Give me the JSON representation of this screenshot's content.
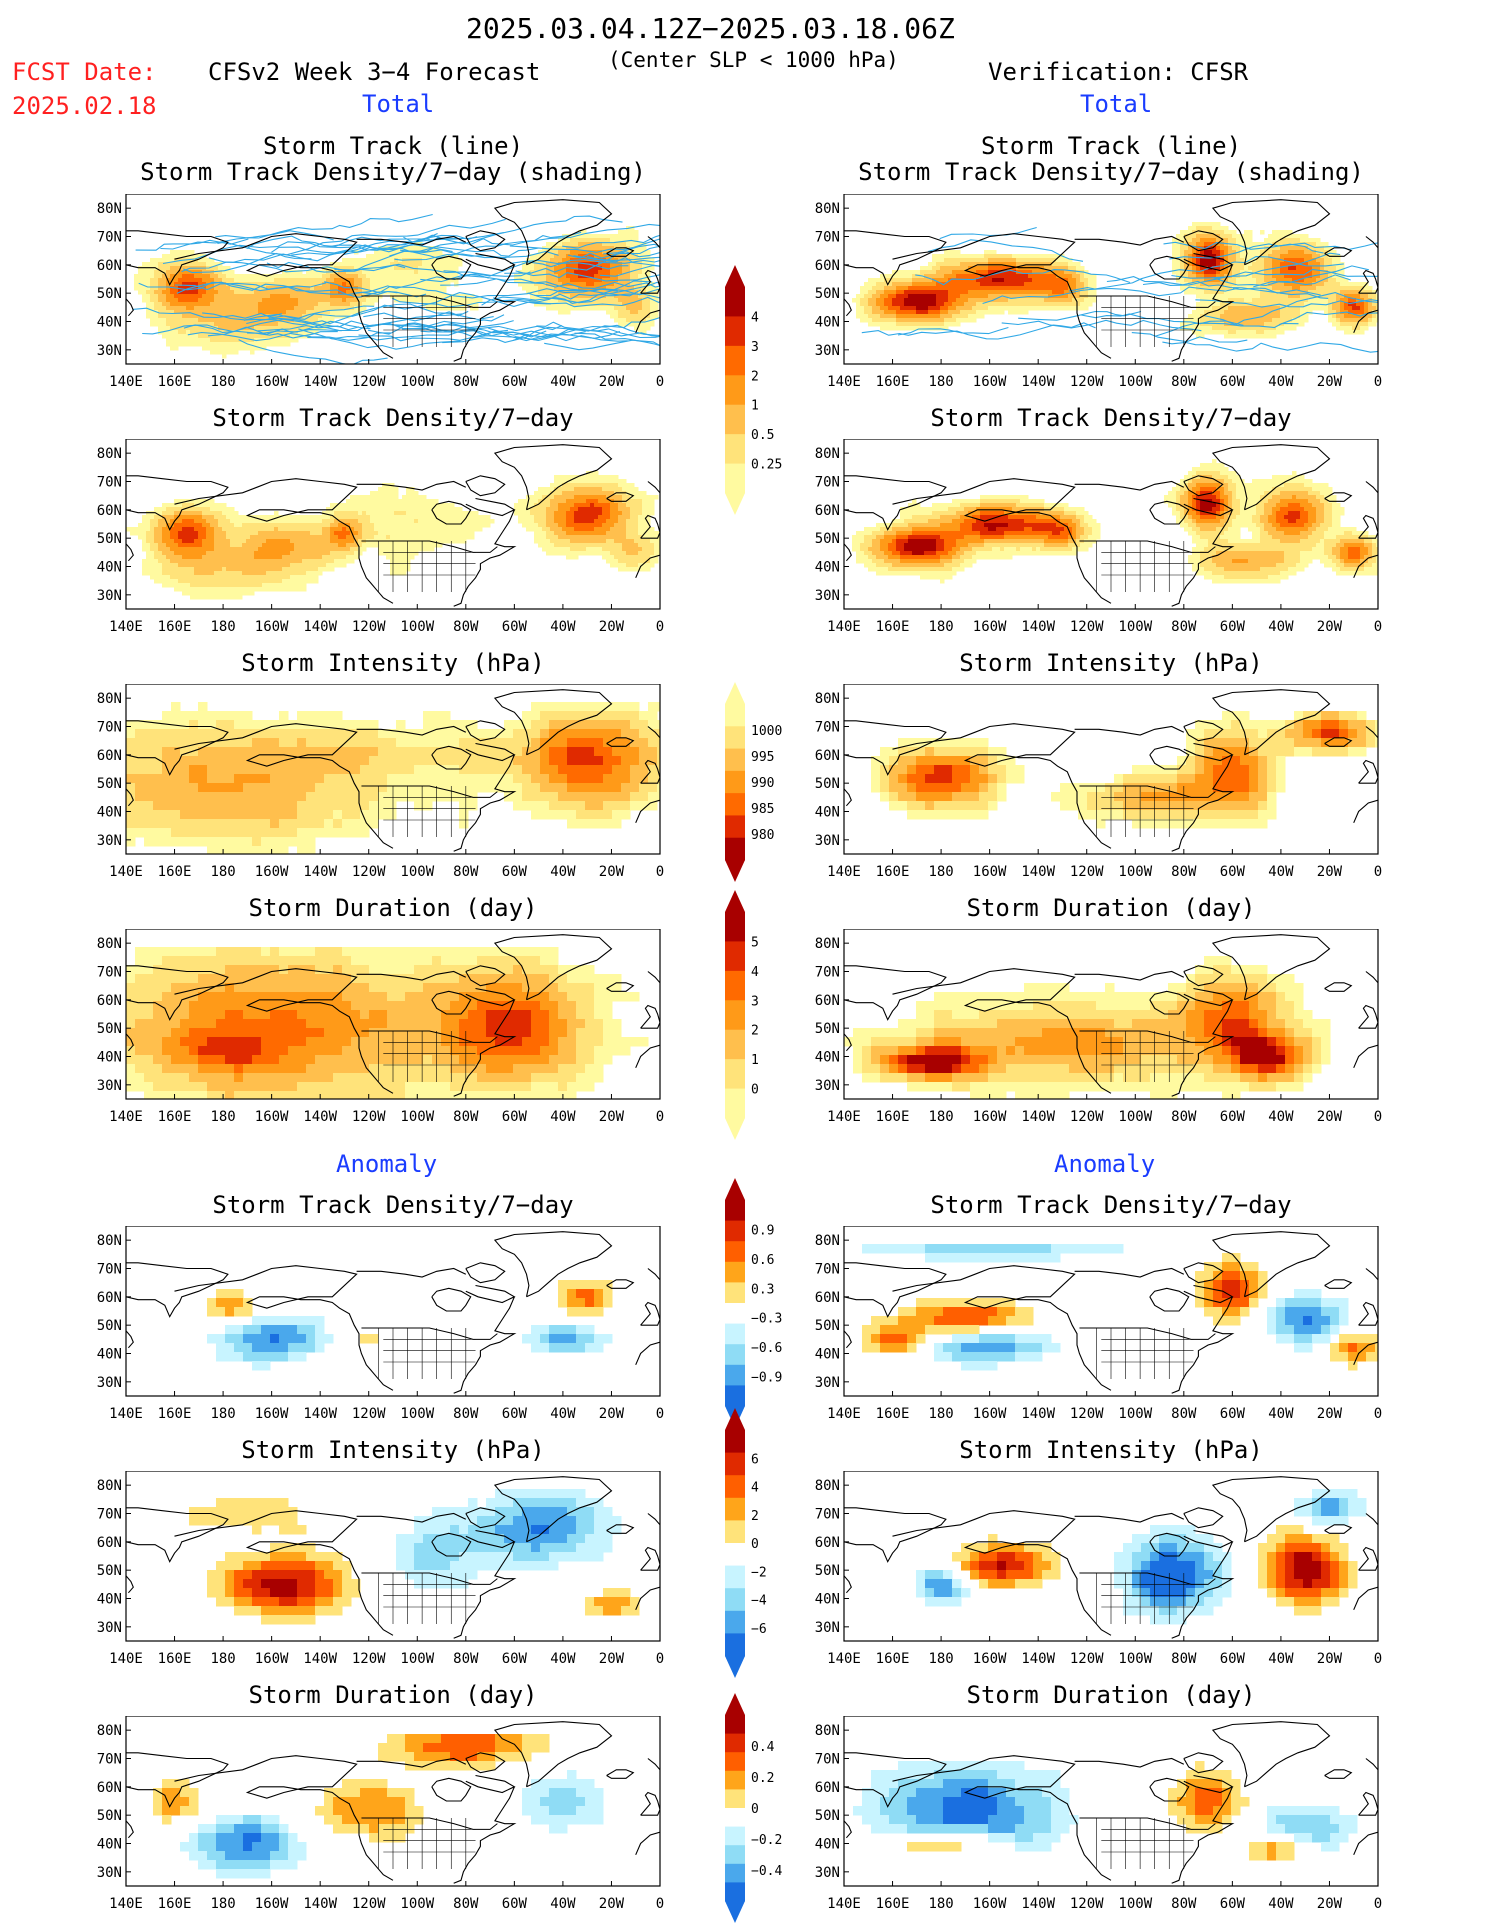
{
  "header": {
    "date_range": "2025.03.04.12Z−2025.03.18.06Z",
    "fcst_label": "FCST Date:",
    "fcst_date": "2025.02.18",
    "forecast_title": "CFSv2 Week 3−4 Forecast",
    "criterion": "(Center SLP < 1000 hPa)",
    "verification": "Verification: CFSR"
  },
  "sections": {
    "total": "Total",
    "anomaly": "Anomaly"
  },
  "titles": {
    "track_line": "Storm Track (line)",
    "track_density_shading": "Storm Track Density/7−day (shading)",
    "track_density": "Storm Track Density/7−day",
    "intensity": "Storm Intensity (hPa)",
    "duration": "Storm Duration (day)"
  },
  "axes": {
    "lat": [
      "80N",
      "70N",
      "60N",
      "50N",
      "40N",
      "30N"
    ],
    "lon": [
      "140E",
      "160E",
      "180",
      "160W",
      "140W",
      "120W",
      "100W",
      "80W",
      "60W",
      "40W",
      "20W",
      "0"
    ]
  },
  "colorbars": {
    "density": [
      "4",
      "3",
      "2",
      "1",
      "0.5",
      "0.25"
    ],
    "intensity": [
      "1000",
      "995",
      "990",
      "985",
      "980"
    ],
    "duration": [
      "5",
      "4",
      "3",
      "2",
      "1",
      "0"
    ],
    "density_anom": [
      "0.9",
      "0.6",
      "0.3",
      "−0.3",
      "−0.6",
      "−0.9"
    ],
    "intensity_anom": [
      "6",
      "4",
      "2",
      "0",
      "−2",
      "−4",
      "−6"
    ],
    "duration_anom": [
      "0.4",
      "0.2",
      "0",
      "−0.2",
      "−0.4"
    ]
  },
  "colors": {
    "seq": [
      "#fffaa0",
      "#ffe37a",
      "#ffbf4d",
      "#ff9a18",
      "#ff6a00",
      "#e02a00",
      "#a80000"
    ],
    "div_warm": [
      "#ffe37a",
      "#ffa51a",
      "#ff5f00",
      "#e02a00",
      "#a80000"
    ],
    "div_cool": [
      "#c8f4ff",
      "#8fdcf5",
      "#4aa8ec",
      "#1a6fe0"
    ],
    "title_red": "#ff2020",
    "section_blue": "#1a3cff",
    "track_line": "#30a8e6"
  }
}
